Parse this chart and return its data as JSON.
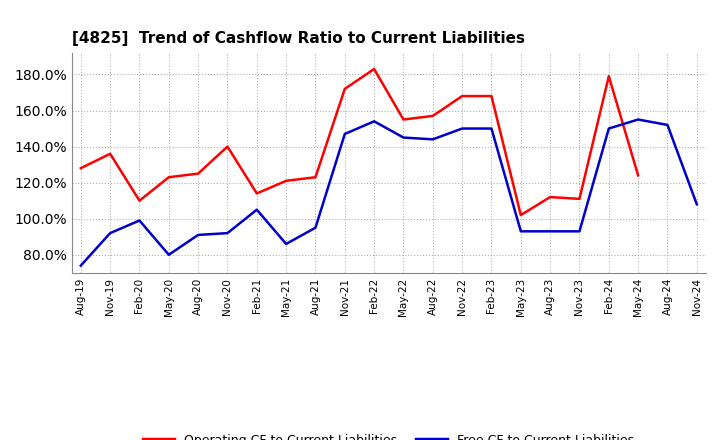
{
  "title": "[4825]  Trend of Cashflow Ratio to Current Liabilities",
  "x_labels": [
    "Aug-19",
    "Nov-19",
    "Feb-20",
    "May-20",
    "Aug-20",
    "Nov-20",
    "Feb-21",
    "May-21",
    "Aug-21",
    "Nov-21",
    "Feb-22",
    "May-22",
    "Aug-22",
    "Nov-22",
    "Feb-23",
    "May-23",
    "Aug-23",
    "Nov-23",
    "Feb-24",
    "May-24",
    "Aug-24",
    "Nov-24"
  ],
  "operating_cf": [
    128,
    136,
    110,
    123,
    125,
    140,
    114,
    121,
    123,
    172,
    183,
    155,
    157,
    168,
    168,
    102,
    112,
    111,
    179,
    124,
    null,
    null
  ],
  "free_cf": [
    74,
    92,
    99,
    80,
    91,
    92,
    105,
    86,
    95,
    147,
    154,
    145,
    144,
    150,
    150,
    93,
    93,
    93,
    150,
    155,
    152,
    108
  ],
  "ylim": [
    70,
    192
  ],
  "yticks": [
    80,
    100,
    120,
    140,
    160,
    180
  ],
  "operating_color": "#ff0000",
  "free_color": "#0000cc",
  "grid_color": "#b0b0b0",
  "bg_color": "#ffffff",
  "legend_labels": [
    "Operating CF to Current Liabilities",
    "Free CF to Current Liabilities"
  ]
}
